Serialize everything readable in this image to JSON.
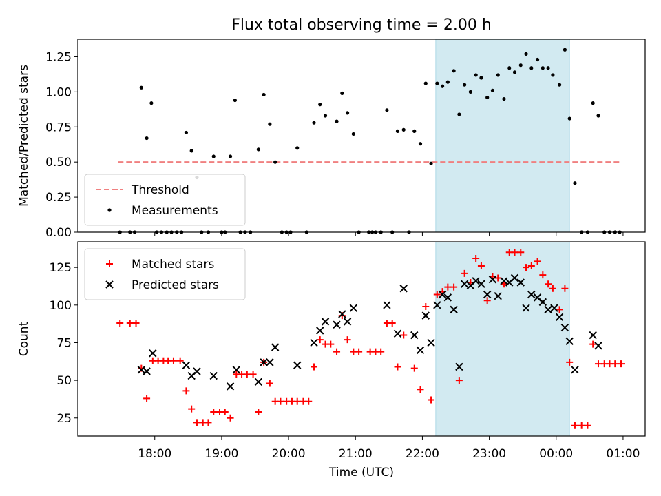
{
  "chart_data": {
    "type": "scatter",
    "title": "Flux total observing time = 2.00 h",
    "xlabel": "Time (UTC)",
    "x_ticks": [
      "18:00",
      "19:00",
      "20:00",
      "21:00",
      "22:00",
      "23:00",
      "00:00",
      "01:00"
    ],
    "x_range_hours": [
      16.85,
      25.33
    ],
    "highlight_span_hours": [
      22.2,
      24.2
    ],
    "highlight_color": "#add8e6",
    "panels": [
      {
        "ylabel": "Matched/Predicted stars",
        "ylim": [
          0,
          1.375
        ],
        "y_ticks": [
          "0.00",
          "0.25",
          "0.50",
          "0.75",
          "1.00",
          "1.25"
        ],
        "legend_position": "lower-left",
        "threshold": {
          "name": "Threshold",
          "value": 0.5,
          "color": "#f08080",
          "x_range_hours": [
            17.45,
            24.98
          ]
        },
        "series": [
          {
            "name": "Measurements",
            "marker": "dot",
            "color": "#000000",
            "points": [
              [
                17.48,
                0
              ],
              [
                17.63,
                0
              ],
              [
                17.7,
                0
              ],
              [
                17.8,
                1.03
              ],
              [
                17.88,
                0.67
              ],
              [
                17.95,
                0.92
              ],
              [
                18.03,
                0
              ],
              [
                18.1,
                0
              ],
              [
                18.18,
                0
              ],
              [
                18.25,
                0
              ],
              [
                18.33,
                0
              ],
              [
                18.4,
                0
              ],
              [
                18.47,
                0.71
              ],
              [
                18.55,
                0.58
              ],
              [
                18.63,
                0.39
              ],
              [
                18.7,
                0
              ],
              [
                18.8,
                0
              ],
              [
                18.88,
                0.54
              ],
              [
                19.0,
                0
              ],
              [
                19.05,
                0
              ],
              [
                19.13,
                0.54
              ],
              [
                19.2,
                0.94
              ],
              [
                19.28,
                0
              ],
              [
                19.35,
                0
              ],
              [
                19.43,
                0
              ],
              [
                19.55,
                0.59
              ],
              [
                19.63,
                0.98
              ],
              [
                19.72,
                0.77
              ],
              [
                19.8,
                0.5
              ],
              [
                19.9,
                0
              ],
              [
                19.97,
                0
              ],
              [
                20.03,
                0
              ],
              [
                20.13,
                0.6
              ],
              [
                20.27,
                0
              ],
              [
                20.38,
                0.78
              ],
              [
                20.47,
                0.91
              ],
              [
                20.55,
                0.83
              ],
              [
                20.72,
                0.79
              ],
              [
                20.8,
                0.99
              ],
              [
                20.88,
                0.85
              ],
              [
                20.97,
                0.7
              ],
              [
                21.05,
                0
              ],
              [
                21.2,
                0
              ],
              [
                21.25,
                0
              ],
              [
                21.3,
                0
              ],
              [
                21.38,
                0
              ],
              [
                21.47,
                0.87
              ],
              [
                21.55,
                0
              ],
              [
                21.63,
                0.72
              ],
              [
                21.72,
                0.73
              ],
              [
                21.8,
                0
              ],
              [
                21.88,
                0.72
              ],
              [
                21.97,
                0.63
              ],
              [
                22.05,
                1.06
              ],
              [
                22.13,
                0.49
              ],
              [
                22.22,
                1.06
              ],
              [
                22.3,
                1.04
              ],
              [
                22.38,
                1.07
              ],
              [
                22.47,
                1.15
              ],
              [
                22.55,
                0.84
              ],
              [
                22.63,
                1.05
              ],
              [
                22.72,
                1.0
              ],
              [
                22.8,
                1.12
              ],
              [
                22.88,
                1.1
              ],
              [
                22.97,
                0.96
              ],
              [
                23.05,
                1.01
              ],
              [
                23.13,
                1.12
              ],
              [
                23.22,
                0.95
              ],
              [
                23.3,
                1.17
              ],
              [
                23.38,
                1.14
              ],
              [
                23.47,
                1.19
              ],
              [
                23.55,
                1.27
              ],
              [
                23.63,
                1.17
              ],
              [
                23.72,
                1.23
              ],
              [
                23.8,
                1.17
              ],
              [
                23.88,
                1.17
              ],
              [
                23.95,
                1.12
              ],
              [
                24.05,
                1.05
              ],
              [
                24.13,
                1.3
              ],
              [
                24.2,
                0.81
              ],
              [
                24.28,
                0.35
              ],
              [
                24.38,
                0
              ],
              [
                24.47,
                0
              ],
              [
                24.55,
                0.92
              ],
              [
                24.63,
                0.83
              ],
              [
                24.72,
                0
              ],
              [
                24.8,
                0
              ],
              [
                24.88,
                0
              ],
              [
                24.95,
                0
              ]
            ]
          }
        ]
      },
      {
        "ylabel": "Count",
        "ylim": [
          13,
          142
        ],
        "y_ticks": [
          "25",
          "50",
          "75",
          "100",
          "125"
        ],
        "legend_position": "upper-left",
        "series": [
          {
            "name": "Matched stars",
            "marker": "plus",
            "color": "#ff0000",
            "points": [
              [
                17.48,
                88
              ],
              [
                17.63,
                88
              ],
              [
                17.72,
                88
              ],
              [
                17.8,
                58
              ],
              [
                17.88,
                38
              ],
              [
                17.97,
                63
              ],
              [
                18.05,
                63
              ],
              [
                18.13,
                63
              ],
              [
                18.2,
                63
              ],
              [
                18.28,
                63
              ],
              [
                18.38,
                63
              ],
              [
                18.47,
                43
              ],
              [
                18.55,
                31
              ],
              [
                18.63,
                22
              ],
              [
                18.72,
                22
              ],
              [
                18.8,
                22
              ],
              [
                18.88,
                29
              ],
              [
                18.97,
                29
              ],
              [
                19.05,
                29
              ],
              [
                19.13,
                25
              ],
              [
                19.22,
                54
              ],
              [
                19.3,
                54
              ],
              [
                19.38,
                54
              ],
              [
                19.47,
                54
              ],
              [
                19.55,
                29
              ],
              [
                19.63,
                62
              ],
              [
                19.72,
                48
              ],
              [
                19.8,
                36
              ],
              [
                19.88,
                36
              ],
              [
                19.97,
                36
              ],
              [
                20.05,
                36
              ],
              [
                20.13,
                36
              ],
              [
                20.22,
                36
              ],
              [
                20.3,
                36
              ],
              [
                20.38,
                59
              ],
              [
                20.47,
                77
              ],
              [
                20.55,
                74
              ],
              [
                20.63,
                74
              ],
              [
                20.72,
                69
              ],
              [
                20.8,
                93
              ],
              [
                20.88,
                77
              ],
              [
                20.97,
                69
              ],
              [
                21.05,
                69
              ],
              [
                21.22,
                69
              ],
              [
                21.3,
                69
              ],
              [
                21.38,
                69
              ],
              [
                21.47,
                88
              ],
              [
                21.55,
                88
              ],
              [
                21.63,
                59
              ],
              [
                21.72,
                80
              ],
              [
                21.88,
                58
              ],
              [
                21.97,
                44
              ],
              [
                22.05,
                99
              ],
              [
                22.13,
                37
              ],
              [
                22.22,
                107
              ],
              [
                22.3,
                109
              ],
              [
                22.38,
                112
              ],
              [
                22.47,
                112
              ],
              [
                22.55,
                50
              ],
              [
                22.63,
                121
              ],
              [
                22.72,
                115
              ],
              [
                22.8,
                131
              ],
              [
                22.88,
                126
              ],
              [
                22.97,
                103
              ],
              [
                23.05,
                119
              ],
              [
                23.13,
                118
              ],
              [
                23.22,
                114
              ],
              [
                23.3,
                135
              ],
              [
                23.38,
                135
              ],
              [
                23.47,
                135
              ],
              [
                23.55,
                125
              ],
              [
                23.63,
                126
              ],
              [
                23.72,
                129
              ],
              [
                23.8,
                120
              ],
              [
                23.88,
                114
              ],
              [
                23.95,
                111
              ],
              [
                24.05,
                97
              ],
              [
                24.13,
                111
              ],
              [
                24.2,
                62
              ],
              [
                24.28,
                20
              ],
              [
                24.38,
                20
              ],
              [
                24.47,
                20
              ],
              [
                24.55,
                74
              ],
              [
                24.63,
                61
              ],
              [
                24.72,
                61
              ],
              [
                24.8,
                61
              ],
              [
                24.88,
                61
              ],
              [
                24.97,
                61
              ]
            ]
          },
          {
            "name": "Predicted stars",
            "marker": "x",
            "color": "#000000",
            "points": [
              [
                17.8,
                57
              ],
              [
                17.88,
                56
              ],
              [
                17.97,
                68
              ],
              [
                18.47,
                60
              ],
              [
                18.55,
                53
              ],
              [
                18.63,
                56
              ],
              [
                18.88,
                53
              ],
              [
                19.13,
                46
              ],
              [
                19.22,
                57
              ],
              [
                19.55,
                49
              ],
              [
                19.63,
                62
              ],
              [
                19.72,
                62
              ],
              [
                19.8,
                72
              ],
              [
                20.13,
                60
              ],
              [
                20.38,
                75
              ],
              [
                20.47,
                83
              ],
              [
                20.55,
                89
              ],
              [
                20.72,
                87
              ],
              [
                20.8,
                94
              ],
              [
                20.88,
                89
              ],
              [
                20.97,
                98
              ],
              [
                21.47,
                100
              ],
              [
                21.63,
                81
              ],
              [
                21.72,
                111
              ],
              [
                21.88,
                80
              ],
              [
                21.97,
                70
              ],
              [
                22.05,
                93
              ],
              [
                22.13,
                75
              ],
              [
                22.22,
                100
              ],
              [
                22.3,
                107
              ],
              [
                22.38,
                105
              ],
              [
                22.47,
                97
              ],
              [
                22.55,
                59
              ],
              [
                22.63,
                114
              ],
              [
                22.72,
                113
              ],
              [
                22.8,
                116
              ],
              [
                22.88,
                114
              ],
              [
                22.97,
                107
              ],
              [
                23.05,
                117
              ],
              [
                23.13,
                106
              ],
              [
                23.22,
                116
              ],
              [
                23.3,
                115
              ],
              [
                23.38,
                118
              ],
              [
                23.47,
                115
              ],
              [
                23.55,
                98
              ],
              [
                23.63,
                107
              ],
              [
                23.72,
                105
              ],
              [
                23.8,
                102
              ],
              [
                23.88,
                97
              ],
              [
                23.97,
                98
              ],
              [
                24.05,
                92
              ],
              [
                24.13,
                85
              ],
              [
                24.2,
                76
              ],
              [
                24.28,
                57
              ],
              [
                24.55,
                80
              ],
              [
                24.63,
                73
              ]
            ]
          }
        ]
      }
    ]
  }
}
